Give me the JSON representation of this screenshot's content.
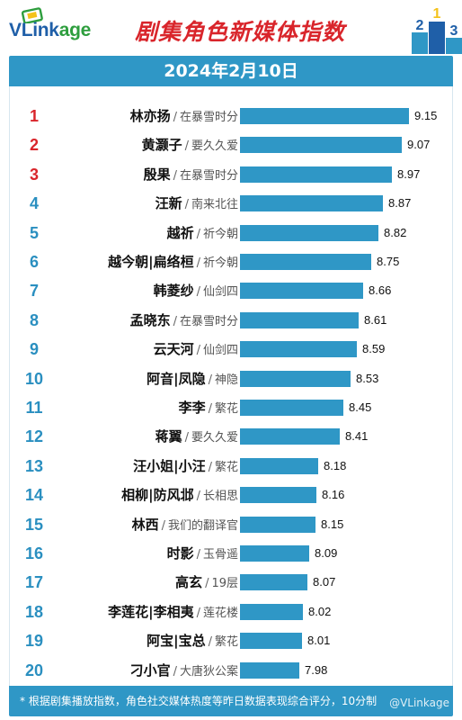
{
  "header": {
    "logo_main": "VLink",
    "logo_accent": "age",
    "title": "剧集角色新媒体指数",
    "podium_numbers": [
      "2",
      "1",
      "3"
    ]
  },
  "date": "2024年2月10日",
  "chart_data": {
    "type": "bar",
    "orientation": "horizontal",
    "title": "剧集角色新媒体指数",
    "subtitle": "2024年2月10日",
    "xlim": [
      0,
      10
    ],
    "grid": false,
    "items": [
      {
        "rank": "1",
        "role": "林亦扬",
        "drama": "在暴雪时分",
        "value": 9.15,
        "value_label": "9.15"
      },
      {
        "rank": "2",
        "role": "黄灏子",
        "drama": "要久久爱",
        "value": 9.07,
        "value_label": "9.07"
      },
      {
        "rank": "3",
        "role": "殷果",
        "drama": "在暴雪时分",
        "value": 8.97,
        "value_label": "8.97"
      },
      {
        "rank": "4",
        "role": "汪新",
        "drama": "南来北往",
        "value": 8.87,
        "value_label": "8.87"
      },
      {
        "rank": "5",
        "role": "越祈",
        "drama": "祈今朝",
        "value": 8.82,
        "value_label": "8.82"
      },
      {
        "rank": "6",
        "role": "越今朝|扁络桓",
        "drama": "祈今朝",
        "value": 8.75,
        "value_label": "8.75"
      },
      {
        "rank": "7",
        "role": "韩菱纱",
        "drama": "仙剑四",
        "value": 8.66,
        "value_label": "8.66"
      },
      {
        "rank": "8",
        "role": "孟晓东",
        "drama": "在暴雪时分",
        "value": 8.61,
        "value_label": "8.61"
      },
      {
        "rank": "9",
        "role": "云天河",
        "drama": "仙剑四",
        "value": 8.59,
        "value_label": "8.59"
      },
      {
        "rank": "10",
        "role": "阿音|凤隐",
        "drama": "神隐",
        "value": 8.53,
        "value_label": "8.53"
      },
      {
        "rank": "11",
        "role": "李李",
        "drama": "繁花",
        "value": 8.45,
        "value_label": "8.45"
      },
      {
        "rank": "12",
        "role": "蒋翼",
        "drama": "要久久爱",
        "value": 8.41,
        "value_label": "8.41"
      },
      {
        "rank": "13",
        "role": "汪小姐|小汪",
        "drama": "繁花",
        "value": 8.18,
        "value_label": "8.18"
      },
      {
        "rank": "14",
        "role": "相柳|防风邶",
        "drama": "长相思",
        "value": 8.16,
        "value_label": "8.16"
      },
      {
        "rank": "15",
        "role": "林西",
        "drama": "我们的翻译官",
        "value": 8.15,
        "value_label": "8.15"
      },
      {
        "rank": "16",
        "role": "时影",
        "drama": "玉骨遥",
        "value": 8.09,
        "value_label": "8.09"
      },
      {
        "rank": "17",
        "role": "高玄",
        "drama": "19层",
        "value": 8.07,
        "value_label": "8.07"
      },
      {
        "rank": "18",
        "role": "李莲花|李相夷",
        "drama": "莲花楼",
        "value": 8.02,
        "value_label": "8.02"
      },
      {
        "rank": "19",
        "role": "阿宝|宝总",
        "drama": "繁花",
        "value": 8.01,
        "value_label": "8.01"
      },
      {
        "rank": "20",
        "role": "刁小官",
        "drama": "大唐狄公案",
        "value": 7.98,
        "value_label": "7.98"
      }
    ],
    "separator": "/",
    "colors": {
      "bar": "#2f97c6",
      "rank_top3": "#d9252b",
      "rank_rest": "#2a8fc0"
    }
  },
  "footer": {
    "note": "* 根据剧集播放指数，角色社交媒体热度等昨日数据表现综合评分，10分制",
    "watermark": "@VLinkage"
  }
}
